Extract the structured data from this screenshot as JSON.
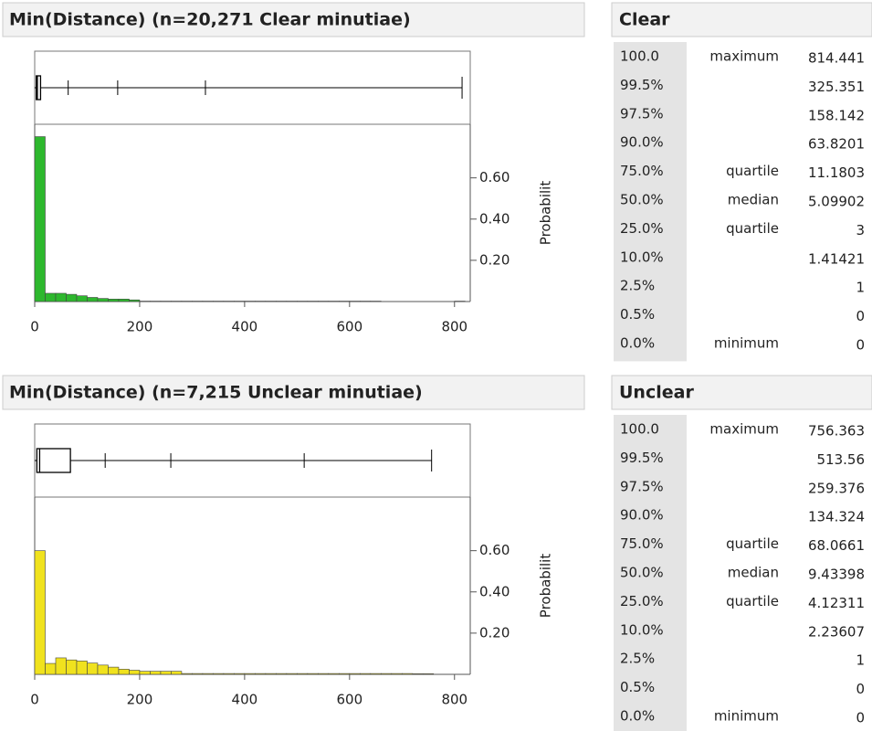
{
  "chart_data": [
    {
      "type": "histogram",
      "title": "Min(Distance) (n=20,271 Clear minutiae)",
      "y_label": "Probabilit",
      "color": "#2db82d",
      "bins": [
        0,
        20,
        40,
        60,
        80,
        100,
        120,
        140,
        160,
        180,
        200,
        220,
        240,
        260,
        280,
        300,
        320,
        340,
        360,
        380,
        400,
        420,
        440,
        460,
        480,
        500,
        520,
        540,
        560,
        580,
        600,
        620,
        640,
        660,
        680,
        700,
        720,
        740,
        760,
        780,
        800,
        820
      ],
      "values": [
        0.8,
        0.04,
        0.04,
        0.035,
        0.028,
        0.02,
        0.015,
        0.012,
        0.012,
        0.008,
        0.002,
        0.002,
        0.002,
        0.002,
        0.002,
        0.002,
        0.002,
        0.002,
        0.002,
        0.002,
        0.002,
        0.002,
        0.002,
        0.002,
        0.002,
        0.002,
        0.002,
        0.002,
        0.002,
        0.002,
        0.002,
        0.002,
        0.002,
        0,
        0,
        0,
        0,
        0,
        0,
        0,
        0.002
      ],
      "xlim": [
        0,
        830
      ],
      "xticks": [
        0,
        200,
        400,
        600,
        800
      ],
      "ylim": [
        0,
        0.86
      ],
      "yticks": [
        {
          "value": 0.2,
          "label": "0.20"
        },
        {
          "value": 0.4,
          "label": "0.40"
        },
        {
          "value": 0.6,
          "label": "0.60"
        }
      ]
    },
    {
      "type": "histogram",
      "title": "Min(Distance) (n=7,215 Unclear minutiae)",
      "y_label": "Probabilit",
      "color": "#f0e21e",
      "bins": [
        0,
        20,
        40,
        60,
        80,
        100,
        120,
        140,
        160,
        180,
        200,
        220,
        240,
        260,
        280,
        300,
        320,
        340,
        360,
        380,
        400,
        420,
        440,
        460,
        480,
        500,
        520,
        540,
        560,
        580,
        600,
        620,
        640,
        660,
        680,
        700,
        720,
        740,
        760
      ],
      "values": [
        0.6,
        0.053,
        0.08,
        0.07,
        0.065,
        0.055,
        0.045,
        0.035,
        0.025,
        0.02,
        0.015,
        0.015,
        0.015,
        0.015,
        0.004,
        0.004,
        0.004,
        0.004,
        0.004,
        0.004,
        0.004,
        0.004,
        0.004,
        0.004,
        0.004,
        0.004,
        0.004,
        0.004,
        0.004,
        0.004,
        0.004,
        0.004,
        0.004,
        0.004,
        0.004,
        0.004,
        0.003,
        0.003
      ],
      "xlim": [
        0,
        830
      ],
      "xticks": [
        0,
        200,
        400,
        600,
        800
      ],
      "ylim": [
        0,
        0.86
      ],
      "yticks": [
        {
          "value": 0.2,
          "label": "0.20"
        },
        {
          "value": 0.4,
          "label": "0.40"
        },
        {
          "value": 0.6,
          "label": "0.60"
        }
      ]
    }
  ],
  "quantile_tables": [
    {
      "title": "Clear",
      "rows": [
        {
          "level": "100.0",
          "label": "maximum",
          "value": 814.441
        },
        {
          "level": "99.5%",
          "value": 325.351
        },
        {
          "level": "97.5%",
          "value": 158.142
        },
        {
          "level": "90.0%",
          "value": 63.8201
        },
        {
          "level": "75.0%",
          "label": "quartile",
          "value": 11.1803
        },
        {
          "level": "50.0%",
          "label": "median",
          "value": 5.09902
        },
        {
          "level": "25.0%",
          "label": "quartile",
          "value": 3
        },
        {
          "level": "10.0%",
          "value": 1.41421
        },
        {
          "level": "2.5%",
          "value": 1
        },
        {
          "level": "0.5%",
          "value": 0
        },
        {
          "level": "0.0%",
          "label": "minimum",
          "value": 0
        }
      ]
    },
    {
      "title": "Unclear",
      "rows": [
        {
          "level": "100.0",
          "label": "maximum",
          "value": 756.363
        },
        {
          "level": "99.5%",
          "value": 513.56
        },
        {
          "level": "97.5%",
          "value": 259.376
        },
        {
          "level": "90.0%",
          "value": 134.324
        },
        {
          "level": "75.0%",
          "label": "quartile",
          "value": 68.0661
        },
        {
          "level": "50.0%",
          "label": "median",
          "value": 9.43398
        },
        {
          "level": "25.0%",
          "label": "quartile",
          "value": 4.12311
        },
        {
          "level": "10.0%",
          "value": 2.23607
        },
        {
          "level": "2.5%",
          "value": 1
        },
        {
          "level": "0.5%",
          "value": 0
        },
        {
          "level": "0.0%",
          "label": "minimum",
          "value": 0
        }
      ]
    }
  ]
}
